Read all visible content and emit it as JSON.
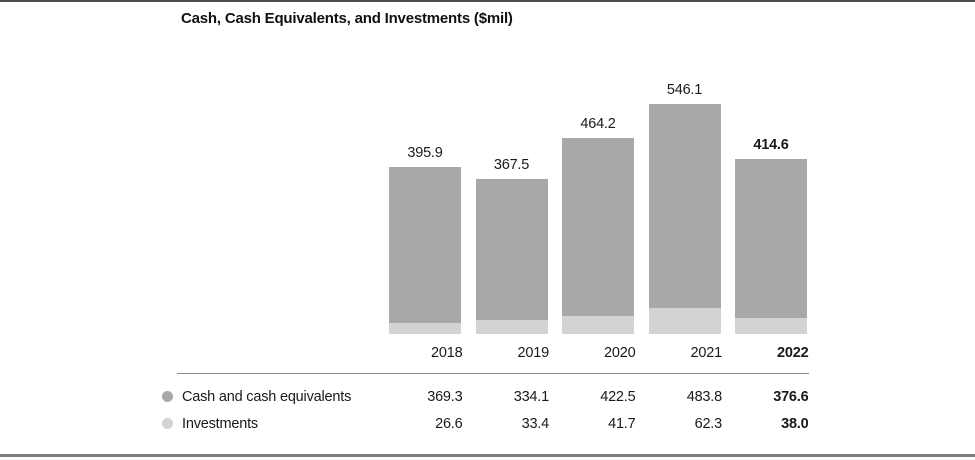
{
  "page": {
    "kind": "financial-report-chart"
  },
  "colors": {
    "cash_bar": "#a8a8a8",
    "investments_bar": "#d3d3d3",
    "text": "#1a1a1a",
    "divider": "#8c8c8c",
    "top_border": "#4f4f4f",
    "bottom_border": "#7e7e7e",
    "background": "#ffffff"
  },
  "chart_data": {
    "type": "bar",
    "stacked": true,
    "title": "Cash, Cash Equivalents, and Investments ($mil)",
    "categories": [
      "2018",
      "2019",
      "2020",
      "2021",
      "2022"
    ],
    "series": [
      {
        "name": "Cash and cash equivalents",
        "color": "#a8a8a8",
        "values": [
          369.3,
          334.1,
          422.5,
          483.8,
          376.6
        ]
      },
      {
        "name": "Investments",
        "color": "#d3d3d3",
        "values": [
          26.6,
          33.4,
          41.7,
          62.3,
          38.0
        ]
      }
    ],
    "totals": [
      395.9,
      367.5,
      464.2,
      546.1,
      414.6
    ],
    "total_labels": [
      "395.9",
      "367.5",
      "464.2",
      "546.1",
      "414.6"
    ],
    "emphasized_category": "2022",
    "legend_position": "bottom-table",
    "grid": false,
    "axis_lines": false,
    "ylim": [
      0,
      546.1
    ]
  }
}
